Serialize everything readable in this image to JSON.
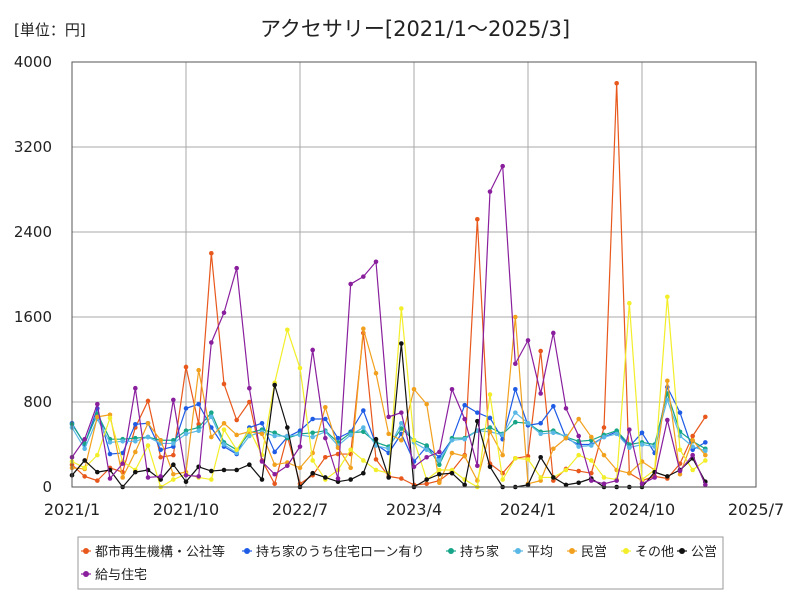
{
  "chart_data": {
    "type": "line",
    "title": "アクセサリー[2021/1～2025/3]",
    "unit": "[単位：円]",
    "x_ticks": [
      "2021/1",
      "2021/10",
      "2022/7",
      "2023/4",
      "2024/1",
      "2024/10",
      "2025/7"
    ],
    "xlim": [
      "2021/1",
      "2025/7"
    ],
    "y_ticks": [
      0,
      800,
      1600,
      2400,
      3200,
      4000
    ],
    "ylim": [
      0,
      4000
    ],
    "grid": true,
    "legend_position": "bottom",
    "x": [
      "2021/1",
      "2021/2",
      "2021/3",
      "2021/4",
      "2021/5",
      "2021/6",
      "2021/7",
      "2021/8",
      "2021/9",
      "2021/10",
      "2021/11",
      "2021/12",
      "2022/1",
      "2022/2",
      "2022/3",
      "2022/4",
      "2022/5",
      "2022/6",
      "2022/7",
      "2022/8",
      "2022/9",
      "2022/10",
      "2022/11",
      "2022/12",
      "2023/1",
      "2023/2",
      "2023/3",
      "2023/4",
      "2023/5",
      "2023/6",
      "2023/7",
      "2023/8",
      "2023/9",
      "2023/10",
      "2023/11",
      "2023/12",
      "2024/1",
      "2024/2",
      "2024/3",
      "2024/4",
      "2024/5",
      "2024/6",
      "2024/7",
      "2024/8",
      "2024/9",
      "2024/10",
      "2024/11",
      "2024/12",
      "2025/1",
      "2025/2",
      "2025/3"
    ],
    "series": [
      {
        "name": "都市再生機構・公社等",
        "color": "#e8581c",
        "values": [
          210,
          100,
          60,
          180,
          140,
          560,
          810,
          280,
          300,
          1130,
          590,
          2200,
          970,
          630,
          800,
          250,
          30,
          480,
          30,
          110,
          280,
          310,
          310,
          1450,
          260,
          100,
          80,
          20,
          30,
          60,
          150,
          300,
          2520,
          220,
          130,
          270,
          290,
          1280,
          60,
          170,
          150,
          130,
          560,
          3800,
          130,
          60,
          100,
          80,
          220,
          480,
          660
        ]
      },
      {
        "name": "持ち家のうち住宅ローン有り",
        "color": "#1f5ce6",
        "values": [
          600,
          400,
          740,
          310,
          320,
          590,
          600,
          350,
          380,
          740,
          780,
          560,
          380,
          310,
          560,
          600,
          330,
          470,
          530,
          640,
          640,
          460,
          520,
          720,
          400,
          320,
          500,
          240,
          380,
          280,
          450,
          770,
          700,
          650,
          450,
          920,
          580,
          600,
          760,
          460,
          400,
          400,
          470,
          520,
          380,
          510,
          320,
          940,
          700,
          350,
          420
        ]
      },
      {
        "name": "持ち家",
        "color": "#16a589",
        "values": [
          590,
          410,
          690,
          450,
          450,
          460,
          470,
          440,
          440,
          530,
          560,
          700,
          420,
          350,
          510,
          540,
          510,
          460,
          500,
          510,
          530,
          420,
          510,
          520,
          420,
          380,
          550,
          440,
          390,
          210,
          460,
          460,
          530,
          560,
          500,
          610,
          600,
          520,
          530,
          470,
          430,
          440,
          490,
          530,
          400,
          420,
          400,
          880,
          520,
          430,
          360
        ]
      },
      {
        "name": "平均",
        "color": "#5ab8e6",
        "values": [
          560,
          360,
          640,
          420,
          430,
          430,
          470,
          410,
          410,
          500,
          530,
          660,
          400,
          320,
          480,
          520,
          480,
          480,
          490,
          470,
          520,
          390,
          490,
          560,
          390,
          360,
          600,
          420,
          350,
          250,
          440,
          450,
          530,
          520,
          490,
          700,
          600,
          500,
          510,
          480,
          380,
          390,
          470,
          500,
          370,
          400,
          380,
          820,
          480,
          380,
          340
        ]
      },
      {
        "name": "民営",
        "color": "#f2a11f",
        "values": [
          180,
          170,
          660,
          680,
          90,
          330,
          600,
          440,
          120,
          140,
          1100,
          470,
          600,
          490,
          520,
          500,
          210,
          230,
          180,
          320,
          750,
          370,
          180,
          1490,
          1070,
          500,
          440,
          920,
          780,
          40,
          320,
          290,
          60,
          520,
          300,
          1600,
          30,
          60,
          360,
          460,
          640,
          470,
          300,
          160,
          130,
          240,
          160,
          1000,
          120,
          440,
          300
        ]
      },
      {
        "name": "その他",
        "color": "#f2ee2a",
        "values": [
          240,
          180,
          300,
          650,
          240,
          160,
          390,
          0,
          70,
          120,
          90,
          70,
          540,
          350,
          540,
          300,
          980,
          1480,
          1120,
          250,
          70,
          160,
          350,
          250,
          160,
          130,
          1680,
          440,
          70,
          160,
          160,
          70,
          0,
          870,
          70,
          270,
          260,
          90,
          90,
          160,
          300,
          250,
          90,
          70,
          1730,
          70,
          160,
          1790,
          350,
          160,
          250
        ]
      },
      {
        "name": "公営",
        "color": "#111111",
        "values": [
          110,
          250,
          140,
          160,
          0,
          140,
          160,
          70,
          210,
          50,
          190,
          150,
          160,
          160,
          210,
          70,
          960,
          560,
          0,
          130,
          90,
          50,
          70,
          130,
          450,
          90,
          1350,
          0,
          70,
          120,
          130,
          20,
          620,
          190,
          0,
          0,
          20,
          280,
          90,
          20,
          40,
          80,
          0,
          0,
          0,
          0,
          140,
          100,
          160,
          270,
          50
        ]
      },
      {
        "name": "給与住宅",
        "color": "#8a1f9e",
        "values": [
          280,
          450,
          780,
          80,
          220,
          930,
          90,
          100,
          820,
          110,
          100,
          1360,
          1640,
          2060,
          930,
          240,
          120,
          200,
          380,
          1290,
          460,
          80,
          1910,
          1980,
          2120,
          660,
          700,
          190,
          280,
          330,
          920,
          640,
          200,
          2780,
          3020,
          1160,
          1380,
          880,
          1450,
          740,
          480,
          60,
          30,
          60,
          540,
          30,
          90,
          630,
          150,
          300,
          20
        ]
      }
    ]
  }
}
